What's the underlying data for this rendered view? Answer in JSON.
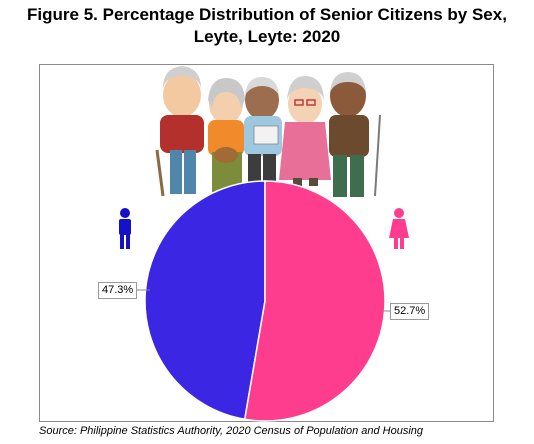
{
  "title_line1": "Figure 5. Percentage Distribution of Senior Citizens by Sex,",
  "title_line2": "Leyte, Leyte: 2020",
  "source": "Source: Philippine Statistics Authority, 2020 Census of Population and Housing",
  "chart_data": {
    "type": "pie",
    "title": "Figure 5. Percentage Distribution of Senior Citizens by Sex, Leyte, Leyte: 2020",
    "slices": [
      {
        "label": "47.3%",
        "value": 47.3,
        "color": "#3b27e3",
        "icon": "male-icon"
      },
      {
        "label": "52.7%",
        "value": 52.7,
        "color": "#ff3d8e",
        "icon": "female-icon"
      }
    ],
    "legend": "icons",
    "grid": false
  },
  "colors": {
    "male_icon": "#1511c9",
    "female_icon": "#ff3d8e",
    "frame_border": "#8a8a8a"
  },
  "illustration": "group-of-senior-citizens-illustration"
}
